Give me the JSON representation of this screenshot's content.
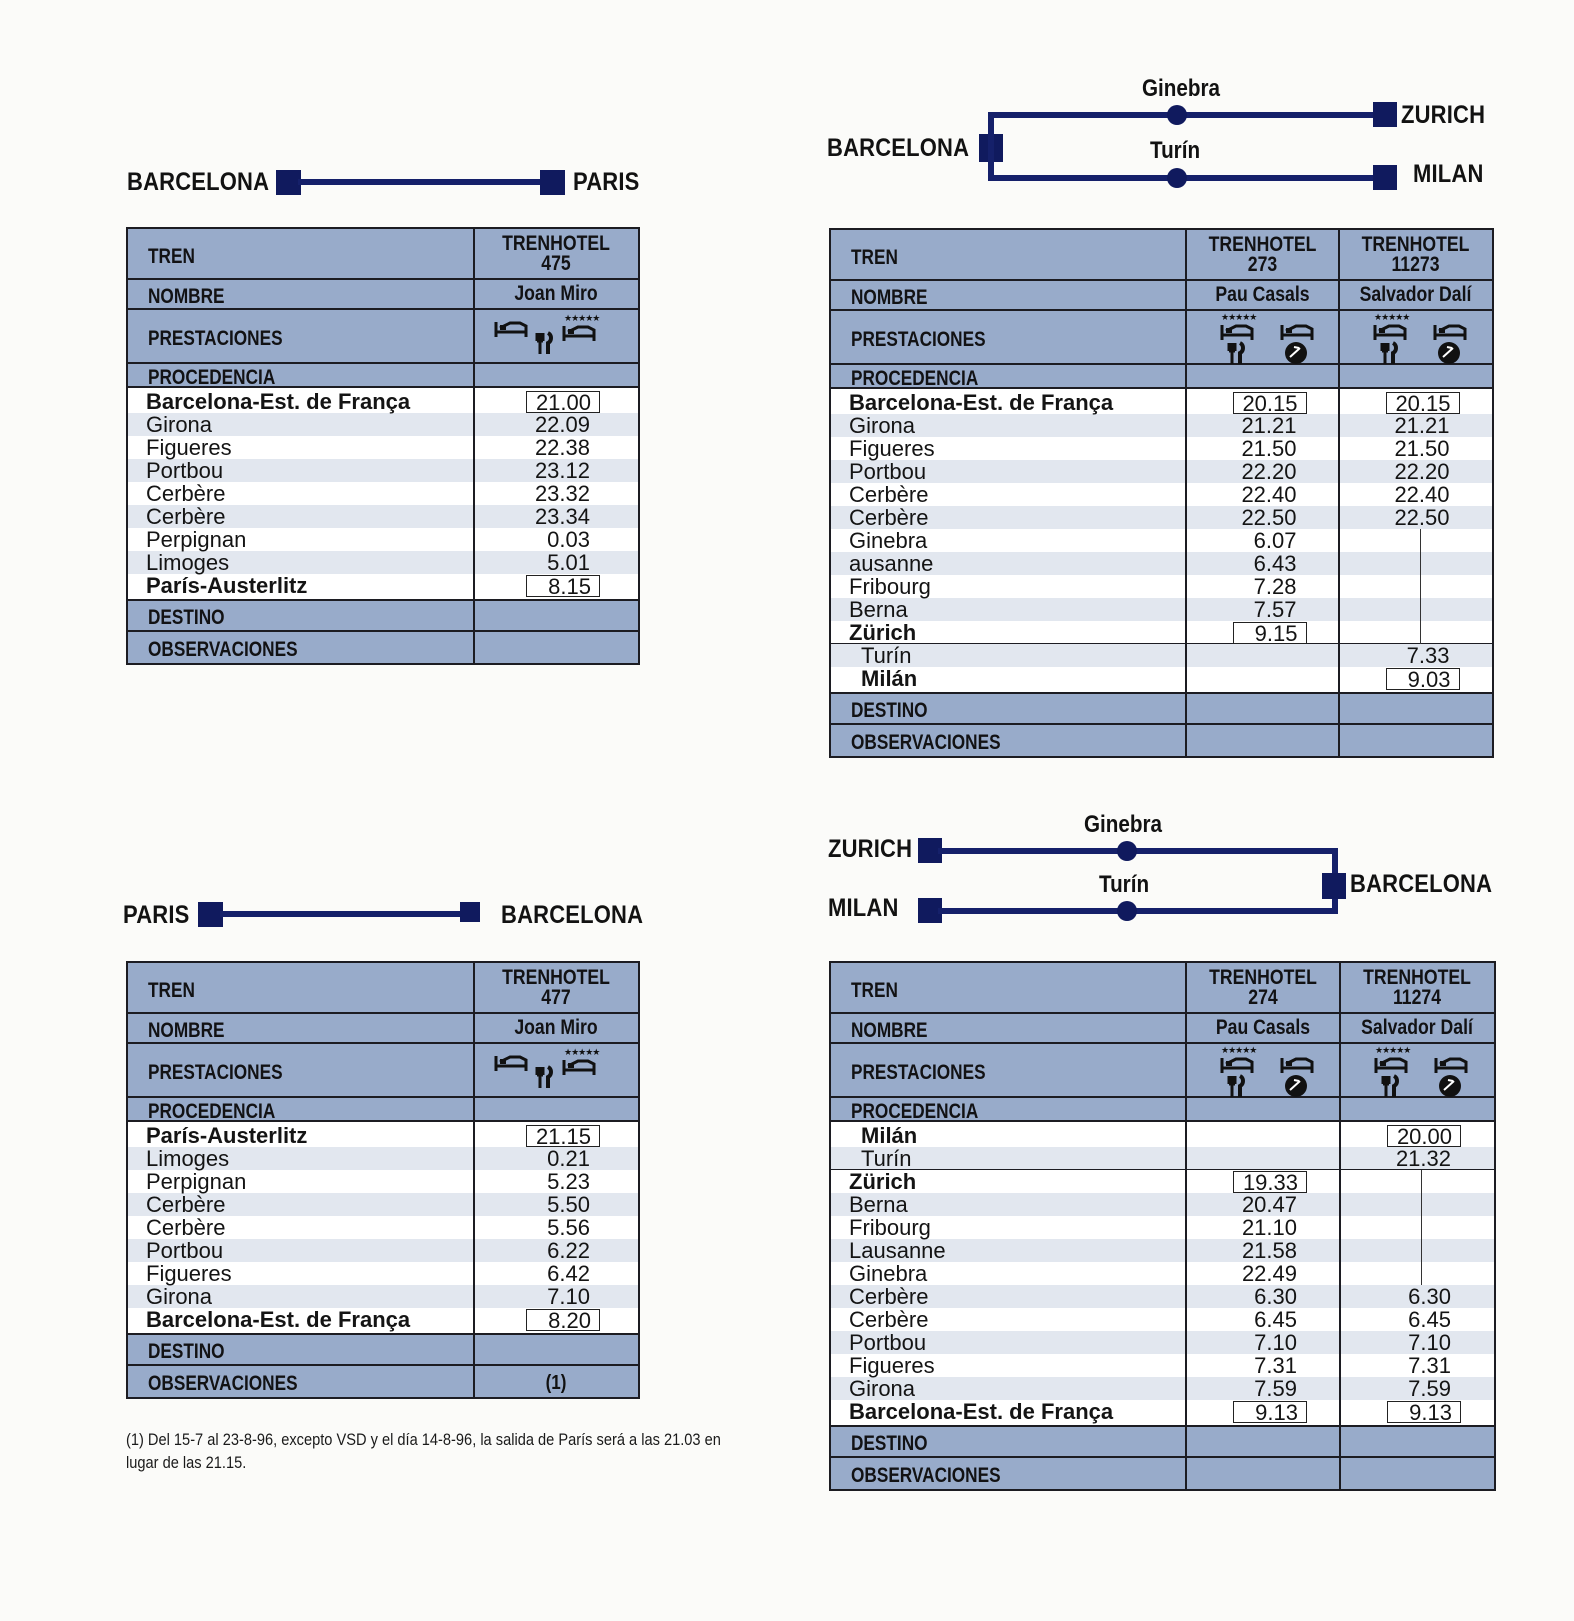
{
  "routes": {
    "bcn_paris": {
      "left": "BARCELONA",
      "right": "PARIS"
    },
    "bcn_zurich_milan": {
      "left": "BARCELONA",
      "top_mid": "Ginebra",
      "bottom_mid": "Turín",
      "top_right": "ZURICH",
      "bottom_right": "MILAN"
    },
    "paris_bcn": {
      "left": "PARIS",
      "right": "BARCELONA"
    },
    "zurich_milan_bcn": {
      "top_left": "ZURICH",
      "bottom_left": "MILAN",
      "top_mid": "Ginebra",
      "bottom_mid": "Turín",
      "right": "BARCELONA"
    }
  },
  "labels": {
    "tren": "TREN",
    "nombre": "NOMBRE",
    "prestaciones": "PRESTACIONES",
    "procedencia": "PROCEDENCIA",
    "destino": "DESTINO",
    "observaciones": "OBSERVACIONES"
  },
  "icons": [
    "bed-icon",
    "restaurant-icon",
    "five-star-bed-icon",
    "shower-icon"
  ],
  "t475": {
    "train_type": "TRENHOTEL",
    "train_no": "475",
    "name": "Joan Miro",
    "stations": [
      "Barcelona-Est. de França",
      "Girona",
      "Figueres",
      "Portbou",
      "Cerbère",
      "Cerbère",
      "Perpignan",
      "Limoges",
      "París-Austerlitz"
    ],
    "times": [
      "21.00",
      "22.09",
      "22.38",
      "23.12",
      "23.32",
      "23.34",
      "0.03",
      "5.01",
      "8.15"
    ],
    "observaciones": ""
  },
  "t273": {
    "col1": {
      "train_type": "TRENHOTEL",
      "train_no": "273",
      "name": "Pau Casals"
    },
    "col2": {
      "train_type": "TRENHOTEL",
      "train_no": "11273",
      "name": "Salvador Dalí"
    },
    "stations": [
      "Barcelona-Est. de França",
      "Girona",
      "Figueres",
      "Portbou",
      "Cerbère",
      "Cerbère",
      "Ginebra",
      "ausanne",
      "Fribourg",
      "Berna",
      "Zürich",
      "Turín",
      "Milán"
    ],
    "times1": [
      "20.15",
      "21.21",
      "21.50",
      "22.20",
      "22.40",
      "22.50",
      "6.07",
      "6.43",
      "7.28",
      "7.57",
      "9.15",
      "",
      ""
    ],
    "times2": [
      "20.15",
      "21.21",
      "21.50",
      "22.20",
      "22.40",
      "22.50",
      "",
      "",
      "",
      "",
      "",
      "7.33",
      "9.03"
    ]
  },
  "t477": {
    "train_type": "TRENHOTEL",
    "train_no": "477",
    "name": "Joan Miro",
    "stations": [
      "París-Austerlitz",
      "Limoges",
      "Perpignan",
      "Cerbère",
      "Cerbère",
      "Portbou",
      "Figueres",
      "Girona",
      "Barcelona-Est. de França"
    ],
    "times": [
      "21.15",
      "0.21",
      "5.23",
      "5.50",
      "5.56",
      "6.22",
      "6.42",
      "7.10",
      "8.20"
    ],
    "observaciones": "(1)"
  },
  "t274": {
    "col1": {
      "train_type": "TRENHOTEL",
      "train_no": "274",
      "name": "Pau Casals"
    },
    "col2": {
      "train_type": "TRENHOTEL",
      "train_no": "11274",
      "name": "Salvador Dalí"
    },
    "stations": [
      "Milán",
      "Turín",
      "Zürich",
      "Berna",
      "Fribourg",
      "Lausanne",
      "Ginebra",
      "Cerbère",
      "Cerbère",
      "Portbou",
      "Figueres",
      "Girona",
      "Barcelona-Est. de França"
    ],
    "times1": [
      "",
      "",
      "19.33",
      "20.47",
      "21.10",
      "21.58",
      "22.49",
      "6.30",
      "6.45",
      "7.10",
      "7.31",
      "7.59",
      "9.13"
    ],
    "times2": [
      "20.00",
      "21.32",
      "",
      "",
      "",
      "",
      "",
      "6.30",
      "6.45",
      "7.10",
      "7.31",
      "7.59",
      "9.13"
    ]
  },
  "footnote": "(1) Del 15-7 al 23-8-96, excepto VSD y el día 14-8-96, la salida de París será a las 21.03 en lugar de las 21.15."
}
